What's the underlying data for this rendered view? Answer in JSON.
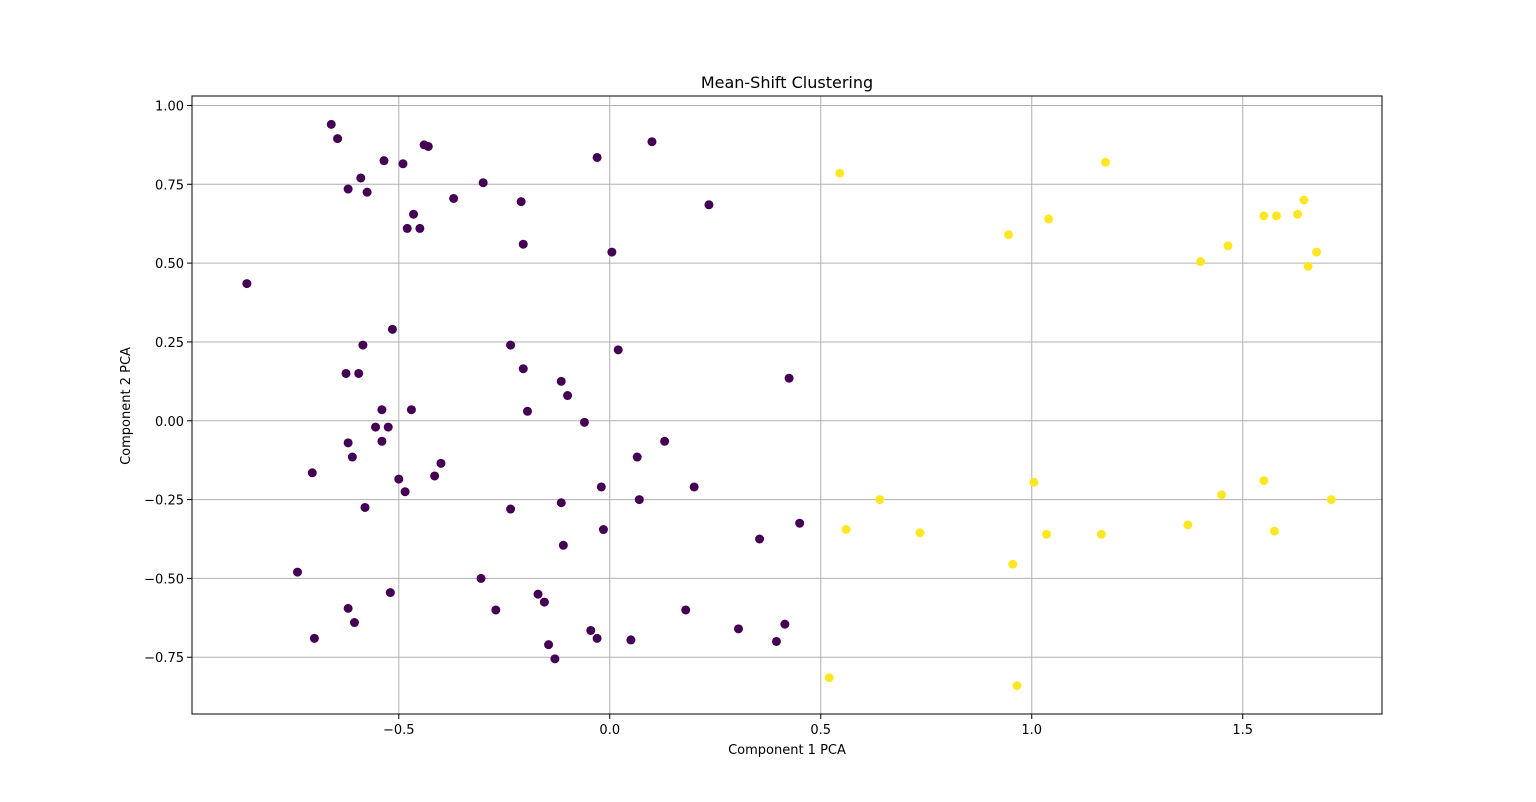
{
  "chart_data": {
    "type": "scatter",
    "title": "Mean-Shift Clustering",
    "xlabel": "Component 1 PCA",
    "ylabel": "Component 2 PCA",
    "xlim": [
      -0.99,
      1.83
    ],
    "ylim": [
      -0.93,
      1.03
    ],
    "xticks": [
      -0.5,
      0.0,
      0.5,
      1.0,
      1.5
    ],
    "xtick_labels": [
      "−0.5",
      "0.0",
      "0.5",
      "1.0",
      "1.5"
    ],
    "yticks": [
      -0.75,
      -0.5,
      -0.25,
      0.0,
      0.25,
      0.5,
      0.75,
      1.0
    ],
    "ytick_labels": [
      "−0.75",
      "−0.50",
      "−0.25",
      "0.00",
      "0.25",
      "0.50",
      "0.75",
      "1.00"
    ],
    "grid": true,
    "colors": {
      "cluster_0": "#440154",
      "cluster_1": "#fde725",
      "grid": "#b0b0b0",
      "axes": "#000000"
    },
    "series": [
      {
        "color": "#440154",
        "points": [
          [
            -0.66,
            0.94
          ],
          [
            -0.645,
            0.895
          ],
          [
            -0.43,
            0.87
          ],
          [
            -0.44,
            0.875
          ],
          [
            -0.03,
            0.835
          ],
          [
            0.1,
            0.885
          ],
          [
            -0.535,
            0.825
          ],
          [
            -0.49,
            0.815
          ],
          [
            -0.59,
            0.77
          ],
          [
            -0.62,
            0.735
          ],
          [
            -0.575,
            0.725
          ],
          [
            -0.3,
            0.755
          ],
          [
            -0.37,
            0.705
          ],
          [
            -0.21,
            0.695
          ],
          [
            0.235,
            0.685
          ],
          [
            -0.465,
            0.655
          ],
          [
            -0.48,
            0.61
          ],
          [
            -0.45,
            0.61
          ],
          [
            -0.205,
            0.56
          ],
          [
            0.005,
            0.535
          ],
          [
            -0.86,
            0.435
          ],
          [
            -0.515,
            0.29
          ],
          [
            -0.235,
            0.24
          ],
          [
            -0.585,
            0.24
          ],
          [
            0.02,
            0.225
          ],
          [
            -0.625,
            0.15
          ],
          [
            -0.595,
            0.15
          ],
          [
            -0.205,
            0.165
          ],
          [
            0.425,
            0.135
          ],
          [
            -0.115,
            0.125
          ],
          [
            -0.1,
            0.08
          ],
          [
            -0.54,
            0.035
          ],
          [
            -0.47,
            0.035
          ],
          [
            -0.195,
            0.03
          ],
          [
            -0.06,
            -0.005
          ],
          [
            -0.555,
            -0.02
          ],
          [
            -0.525,
            -0.02
          ],
          [
            -0.62,
            -0.07
          ],
          [
            -0.54,
            -0.065
          ],
          [
            0.13,
            -0.065
          ],
          [
            -0.61,
            -0.115
          ],
          [
            0.065,
            -0.115
          ],
          [
            -0.705,
            -0.165
          ],
          [
            -0.4,
            -0.135
          ],
          [
            -0.415,
            -0.175
          ],
          [
            -0.5,
            -0.185
          ],
          [
            -0.485,
            -0.225
          ],
          [
            -0.02,
            -0.21
          ],
          [
            0.2,
            -0.21
          ],
          [
            0.07,
            -0.25
          ],
          [
            -0.115,
            -0.26
          ],
          [
            -0.58,
            -0.275
          ],
          [
            -0.235,
            -0.28
          ],
          [
            0.45,
            -0.325
          ],
          [
            -0.015,
            -0.345
          ],
          [
            0.355,
            -0.375
          ],
          [
            -0.11,
            -0.395
          ],
          [
            -0.74,
            -0.48
          ],
          [
            -0.305,
            -0.5
          ],
          [
            -0.52,
            -0.545
          ],
          [
            -0.17,
            -0.55
          ],
          [
            -0.155,
            -0.575
          ],
          [
            -0.62,
            -0.595
          ],
          [
            -0.27,
            -0.6
          ],
          [
            0.18,
            -0.6
          ],
          [
            -0.605,
            -0.64
          ],
          [
            0.415,
            -0.645
          ],
          [
            0.305,
            -0.66
          ],
          [
            -0.045,
            -0.665
          ],
          [
            -0.7,
            -0.69
          ],
          [
            -0.03,
            -0.69
          ],
          [
            0.05,
            -0.695
          ],
          [
            0.395,
            -0.7
          ],
          [
            -0.145,
            -0.71
          ],
          [
            -0.13,
            -0.755
          ]
        ]
      },
      {
        "color": "#fde725",
        "points": [
          [
            0.545,
            0.785
          ],
          [
            1.175,
            0.82
          ],
          [
            1.645,
            0.7
          ],
          [
            1.04,
            0.64
          ],
          [
            1.55,
            0.65
          ],
          [
            1.58,
            0.65
          ],
          [
            1.63,
            0.655
          ],
          [
            0.945,
            0.59
          ],
          [
            1.465,
            0.555
          ],
          [
            1.675,
            0.535
          ],
          [
            1.4,
            0.505
          ],
          [
            1.655,
            0.49
          ],
          [
            1.005,
            -0.195
          ],
          [
            1.55,
            -0.19
          ],
          [
            1.45,
            -0.235
          ],
          [
            0.64,
            -0.25
          ],
          [
            1.71,
            -0.25
          ],
          [
            0.56,
            -0.345
          ],
          [
            1.37,
            -0.33
          ],
          [
            0.735,
            -0.355
          ],
          [
            1.575,
            -0.35
          ],
          [
            1.035,
            -0.36
          ],
          [
            1.165,
            -0.36
          ],
          [
            0.955,
            -0.455
          ],
          [
            0.52,
            -0.815
          ],
          [
            0.965,
            -0.84
          ]
        ]
      }
    ]
  }
}
